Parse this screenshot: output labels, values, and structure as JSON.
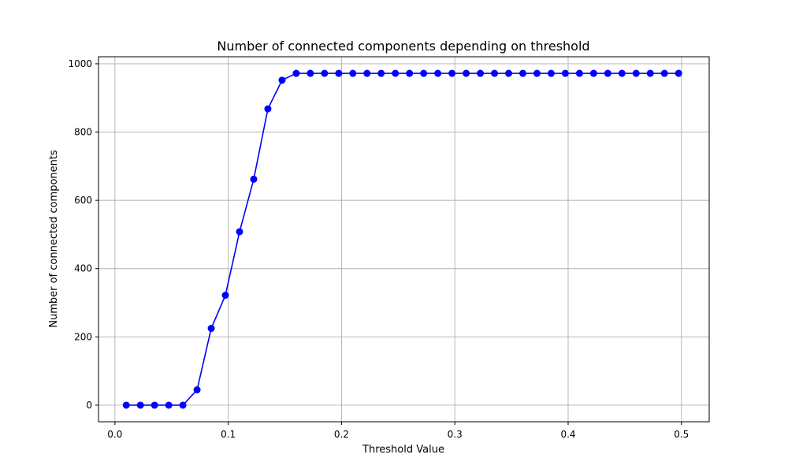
{
  "chart_data": {
    "type": "line",
    "title": "Number of connected components depending on threshold",
    "xlabel": "Threshold Value",
    "ylabel": "Number of connected components",
    "xlim": [
      -0.0145,
      0.5245
    ],
    "ylim": [
      -48.6,
      1020.6
    ],
    "xticks": [
      0.0,
      0.1,
      0.2,
      0.3,
      0.4,
      0.5
    ],
    "xtick_labels": [
      "0.0",
      "0.1",
      "0.2",
      "0.3",
      "0.4",
      "0.5"
    ],
    "yticks": [
      0,
      200,
      400,
      600,
      800,
      1000
    ],
    "ytick_labels": [
      "0",
      "200",
      "400",
      "600",
      "800",
      "1000"
    ],
    "grid": true,
    "color": "#0000ff",
    "marker": "circle",
    "series": [
      {
        "x": [
          0.01,
          0.0225,
          0.035,
          0.0475,
          0.06,
          0.0725,
          0.085,
          0.0975,
          0.11,
          0.1225,
          0.135,
          0.1475,
          0.16,
          0.1725,
          0.185,
          0.1975,
          0.21,
          0.2225,
          0.235,
          0.2475,
          0.26,
          0.2725,
          0.285,
          0.2975,
          0.31,
          0.3225,
          0.335,
          0.3475,
          0.36,
          0.3725,
          0.385,
          0.3975,
          0.41,
          0.4225,
          0.435,
          0.4475,
          0.46,
          0.4725,
          0.485,
          0.4975
        ],
        "y": [
          0,
          0,
          0,
          0,
          0,
          45,
          225,
          322,
          508,
          662,
          868,
          952,
          972,
          972,
          972,
          972,
          972,
          972,
          972,
          972,
          972,
          972,
          972,
          972,
          972,
          972,
          972,
          972,
          972,
          972,
          972,
          972,
          972,
          972,
          972,
          972,
          972,
          972,
          972,
          972
        ]
      }
    ]
  }
}
